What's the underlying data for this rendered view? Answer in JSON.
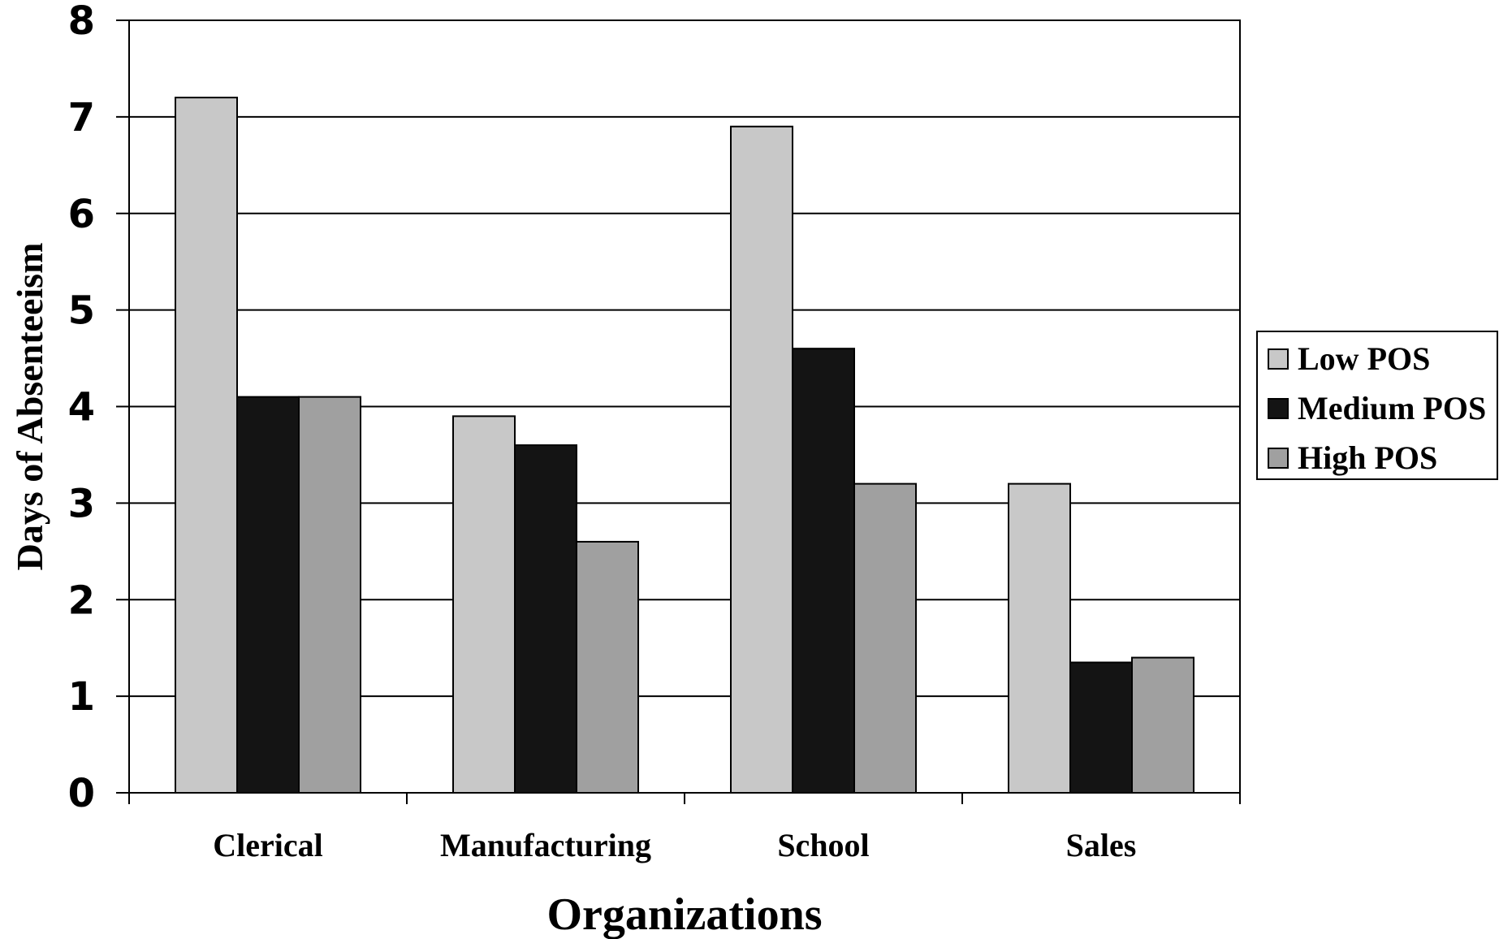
{
  "chart_data": {
    "type": "bar",
    "title": "",
    "xlabel": "Organizations",
    "ylabel": "Days of Absenteeism",
    "ylim": [
      0,
      8
    ],
    "yticks": [
      0,
      1,
      2,
      3,
      4,
      5,
      6,
      7,
      8
    ],
    "grid": true,
    "legend_position": "right",
    "categories": [
      "Clerical",
      "Manufacturing",
      "School",
      "Sales"
    ],
    "series": [
      {
        "name": "Low POS",
        "values": [
          7.2,
          3.9,
          6.9,
          3.2
        ],
        "color": "#c8c8c8"
      },
      {
        "name": "Medium POS",
        "values": [
          4.1,
          3.6,
          4.6,
          1.35
        ],
        "color": "#141414"
      },
      {
        "name": "High POS",
        "values": [
          4.1,
          2.6,
          3.2,
          1.4
        ],
        "color": "#a0a0a0"
      }
    ]
  }
}
